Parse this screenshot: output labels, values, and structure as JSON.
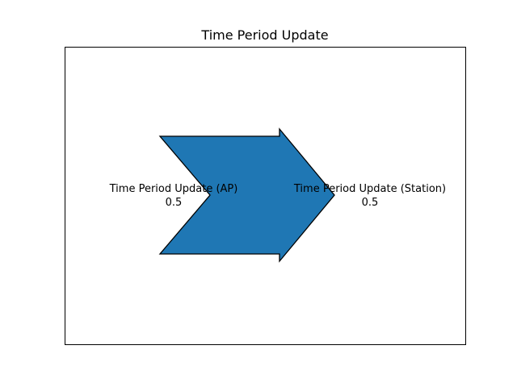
{
  "chart_data": {
    "type": "sankey",
    "title": "Time Period Update",
    "flows": [
      {
        "label": "Time Period Update (AP)",
        "value": "0.5"
      },
      {
        "label": "Time Period Update (Station)",
        "value": "0.5"
      }
    ],
    "colors": {
      "flow_fill": "#1f77b4",
      "flow_edge": "#000000",
      "frame": "#000000"
    },
    "grid": false
  }
}
